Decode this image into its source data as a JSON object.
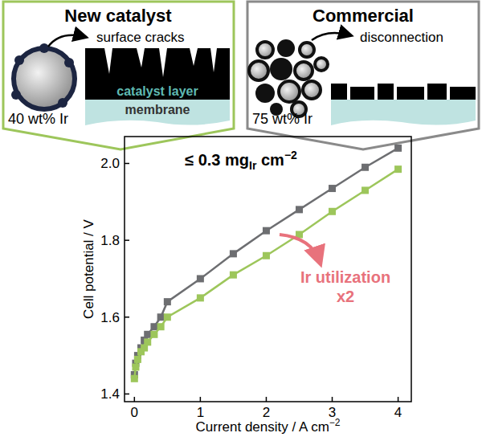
{
  "chart_data": {
    "type": "line",
    "x": [
      0,
      0.02,
      0.05,
      0.1,
      0.15,
      0.2,
      0.3,
      0.4,
      0.5,
      1,
      1.5,
      2,
      2.5,
      3,
      3.5,
      4
    ],
    "series": [
      {
        "name": "Commercial",
        "color": "#6d6e71",
        "marker": "square",
        "values": [
          1.45,
          1.48,
          1.5,
          1.52,
          1.54,
          1.555,
          1.575,
          1.6,
          1.64,
          1.7,
          1.765,
          1.825,
          1.88,
          1.935,
          1.99,
          2.04
        ]
      },
      {
        "name": "New catalyst",
        "color": "#9dc65b",
        "marker": "square",
        "values": [
          1.44,
          1.47,
          1.49,
          1.51,
          1.52,
          1.535,
          1.555,
          1.575,
          1.6,
          1.65,
          1.71,
          1.76,
          1.815,
          1.875,
          1.93,
          1.985
        ]
      }
    ],
    "xlim": [
      -0.15,
      4.2
    ],
    "ylim": [
      1.38,
      2.07
    ],
    "xticks": [
      0,
      1,
      2,
      3,
      4
    ],
    "yticks": [
      1.4,
      1.6,
      1.8,
      {
        "value": 2,
        "label": "2.0"
      }
    ],
    "x_label": [
      "Current density / A cm",
      "−2"
    ],
    "y_label": "Cell potential / V",
    "annotations": [
      {
        "parts": [
          "≤ 0.3 mg",
          "Ir",
          " cm",
          "−2"
        ]
      },
      {
        "lines": [
          "Ir utilization",
          "x2"
        ],
        "color": "#e8727c"
      }
    ],
    "grid": false
  },
  "diagram": {
    "new": {
      "defect": "surface cracks",
      "layer": "catalyst layer",
      "membrane": "membrane",
      "loading": "40 wt% Ir"
    },
    "commercial": {
      "defect": "disconnection",
      "loading": "75 wt% Ir"
    }
  }
}
